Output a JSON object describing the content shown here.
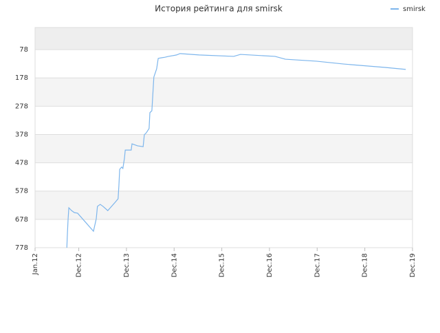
{
  "chart_data": {
    "type": "line",
    "title": "История рейтинга для smirsk",
    "series": [
      {
        "name": "smirsk",
        "color": "#7cb5ec",
        "x": [
          8.0,
          8.1,
          8.3,
          8.5,
          9.2,
          9.9,
          10.7,
          14.7,
          15.4,
          15.7,
          16.4,
          17.1,
          18.3,
          20.2,
          20.9,
          21.1,
          21.3,
          21.8,
          22.1,
          22.5,
          22.7,
          24.2,
          24.4,
          25.8,
          27.2,
          27.5,
          28.0,
          28.7,
          28.9,
          29.4,
          29.9,
          30.6,
          31.0,
          31.8,
          32.7,
          33.6,
          35.6,
          36.5,
          41.3,
          50.0,
          51.7,
          60.4,
          63.0,
          70.8,
          77.7,
          88.1,
          93.3
        ],
        "values": [
          778,
          741,
          681,
          637,
          647,
          654,
          656,
          720,
          676,
          632,
          625,
          632,
          647,
          617,
          605,
          559,
          501,
          493,
          498,
          462,
          433,
          433,
          411,
          418,
          421,
          379,
          372,
          357,
          301,
          294,
          175,
          146,
          109,
          107,
          105,
          102,
          97,
          92,
          97,
          102,
          95,
          102,
          112,
          119,
          129,
          141,
          148
        ]
      }
    ],
    "xlim": [
      0,
      95
    ],
    "xticks": [
      {
        "value": 0,
        "label": "Jan.12"
      },
      {
        "value": 11,
        "label": "Dec.12"
      },
      {
        "value": 23,
        "label": "Dec.13"
      },
      {
        "value": 35,
        "label": "Dec.14"
      },
      {
        "value": 47,
        "label": "Dec.15"
      },
      {
        "value": 59,
        "label": "Dec.16"
      },
      {
        "value": 71,
        "label": "Dec.17"
      },
      {
        "value": 83,
        "label": "Dec.18"
      },
      {
        "value": 95,
        "label": "Dec.19"
      }
    ],
    "ylim": [
      778,
      0
    ],
    "yticks": [
      78,
      178,
      278,
      378,
      478,
      578,
      678,
      778
    ],
    "legend": "top-right"
  }
}
